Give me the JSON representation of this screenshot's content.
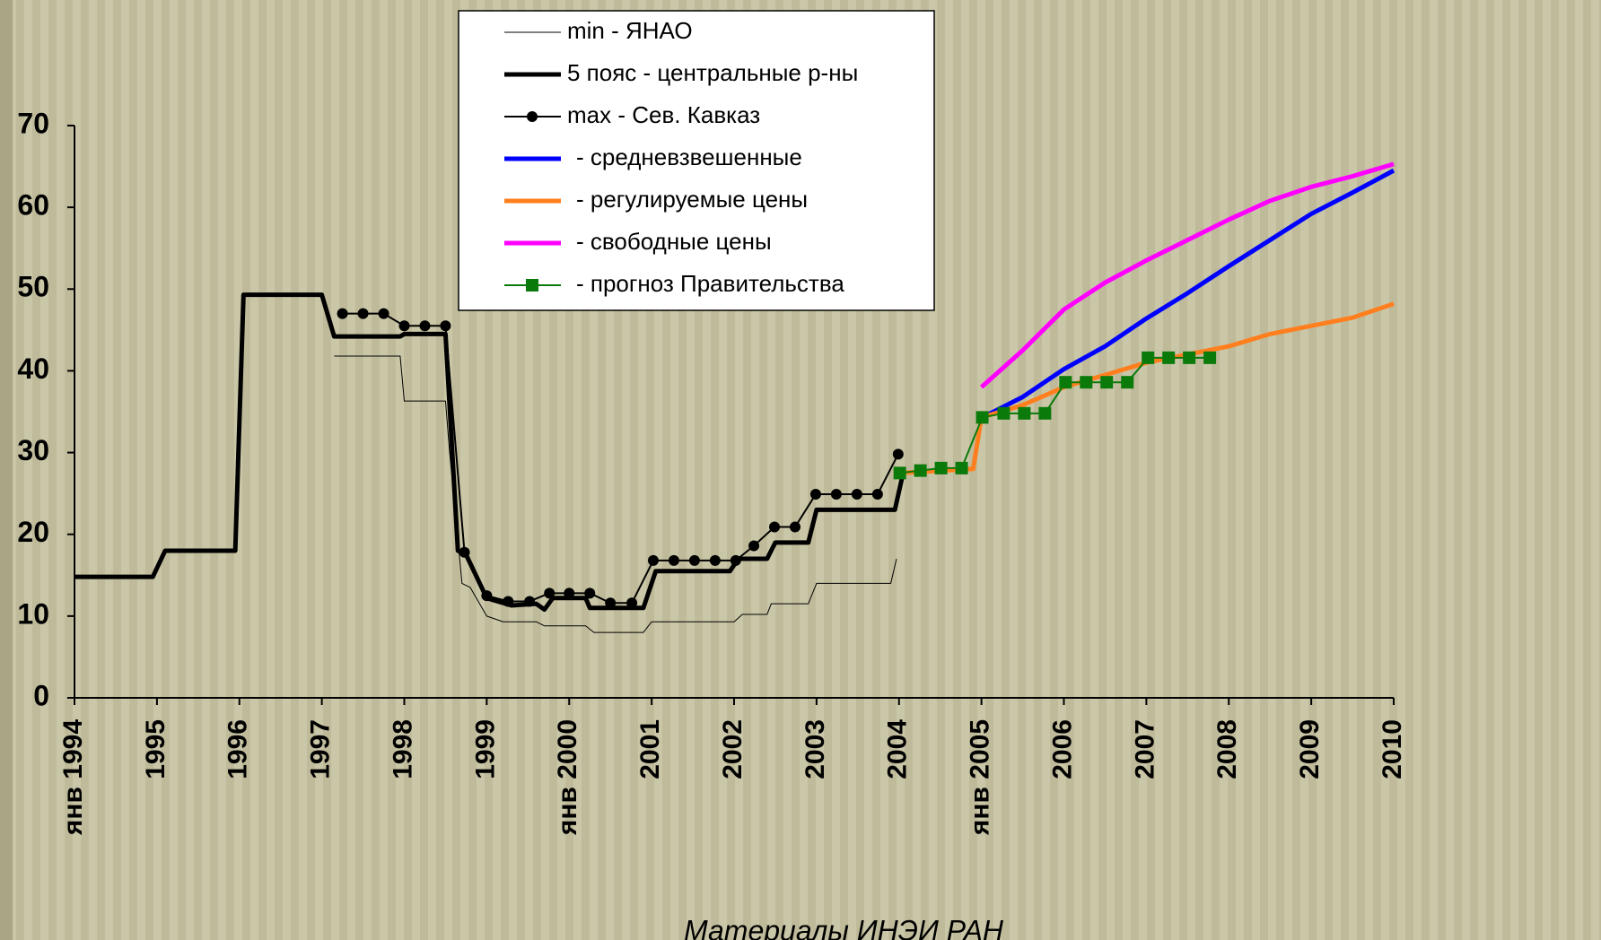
{
  "chart_data": {
    "type": "line",
    "annotation": "Материалы ИНЭИ РАН",
    "xlim": [
      1994,
      2010
    ],
    "ylim": [
      0,
      70
    ],
    "yticks": [
      0,
      10,
      20,
      30,
      40,
      50,
      60,
      70
    ],
    "xticks": [
      {
        "value": 1994,
        "label": "янв 1994"
      },
      1995,
      1996,
      1997,
      1998,
      1999,
      {
        "value": 2000,
        "label": "янв 2000"
      },
      2001,
      2002,
      2003,
      2004,
      {
        "value": 2005,
        "label": "янв 2005"
      },
      2006,
      2007,
      2008,
      2009,
      2010
    ],
    "series": [
      {
        "name": "min - ЯНАО",
        "color": "#000000",
        "width": 1,
        "x": [
          1997.15,
          1997.95,
          1998.0,
          1998.5,
          1998.55,
          1998.7,
          1998.8,
          1999.0,
          1999.2,
          1999.6,
          1999.7,
          2000.2,
          2000.3,
          2000.9,
          2001.0,
          2002.0,
          2002.1,
          2002.4,
          2002.45,
          2002.9,
          2003.0,
          2003.9,
          2003.97
        ],
        "values": [
          41.8,
          41.8,
          36.3,
          36.3,
          30,
          14,
          13.5,
          10,
          9.3,
          9.3,
          8.8,
          8.8,
          8,
          8,
          9.3,
          9.3,
          10.2,
          10.2,
          11.5,
          11.5,
          14,
          14,
          17
        ]
      },
      {
        "name": "5 пояс - центральные р-ны",
        "color": "#000000",
        "width": 5,
        "x": [
          1994.0,
          1994.95,
          1995.1,
          1995.95,
          1996.05,
          1997.0,
          1997.15,
          1997.95,
          1998.0,
          1998.5,
          1998.65,
          1998.75,
          1999.0,
          1999.3,
          1999.6,
          1999.7,
          1999.8,
          2000.2,
          2000.25,
          2000.9,
          2001.05,
          2001.95,
          2002.05,
          2002.4,
          2002.5,
          2002.9,
          2003.0,
          2003.95,
          2004.05
        ],
        "values": [
          14.8,
          14.8,
          18,
          18,
          49.3,
          49.3,
          44.2,
          44.2,
          44.5,
          44.5,
          18,
          17.5,
          12.2,
          11.3,
          11.5,
          10.8,
          12.2,
          12.2,
          11,
          11,
          15.5,
          15.5,
          17,
          17,
          19,
          19,
          23,
          23,
          27.5
        ]
      },
      {
        "name": "max - Сев. Кавказ",
        "color": "#000000",
        "width": 2,
        "marker": "circle",
        "x": [
          1997.25,
          1997.5,
          1997.75,
          1998.0,
          1998.25,
          1998.5,
          1998.73,
          1999.0,
          1999.26,
          1999.52,
          1999.76,
          2000.0,
          2000.25,
          2000.5,
          2000.76,
          2001.02,
          2001.27,
          2001.52,
          2001.77,
          2002.02,
          2002.24,
          2002.49,
          2002.74,
          2002.99,
          2003.24,
          2003.49,
          2003.74,
          2003.99
        ],
        "values": [
          47,
          47,
          47,
          45.5,
          45.5,
          45.5,
          17.8,
          12.5,
          11.8,
          11.8,
          12.8,
          12.8,
          12.8,
          11.6,
          11.6,
          16.8,
          16.8,
          16.8,
          16.8,
          16.8,
          18.6,
          20.9,
          20.9,
          24.9,
          24.9,
          24.9,
          24.9,
          29.8
        ]
      },
      {
        "name": "- средневзвешенные",
        "color": "#0000ff",
        "width": 5,
        "x": [
          2005.05,
          2005.5,
          2006,
          2006.5,
          2007,
          2007.5,
          2008,
          2008.5,
          2009,
          2009.5,
          2010
        ],
        "values": [
          34.5,
          36.8,
          40.2,
          43,
          46.4,
          49.5,
          52.8,
          56,
          59.2,
          61.8,
          64.5
        ]
      },
      {
        "name": "- регулируемые цены",
        "color": "#ff7f1e",
        "width": 5,
        "x": [
          2004.0,
          2004.9,
          2005.0,
          2005.5,
          2006,
          2006.5,
          2007,
          2007.5,
          2008,
          2008.5,
          2009,
          2009.5,
          2010
        ],
        "values": [
          27.5,
          28,
          34.3,
          35.8,
          38,
          39.5,
          41,
          42,
          43,
          44.5,
          45.5,
          46.5,
          48.2
        ]
      },
      {
        "name": "- свободные цены",
        "color": "#ff00ff",
        "width": 5,
        "x": [
          2005.0,
          2005.5,
          2006,
          2006.5,
          2007,
          2007.5,
          2008,
          2008.5,
          2009,
          2009.5,
          2010
        ],
        "values": [
          38,
          42.5,
          47.5,
          50.8,
          53.5,
          56,
          58.5,
          60.8,
          62.5,
          63.8,
          65.3
        ]
      },
      {
        "name": "- прогноз Правительства",
        "color": "#0a7a0a",
        "width": 2,
        "marker": "square",
        "x": [
          2004.01,
          2004.26,
          2004.51,
          2004.76,
          2005.01,
          2005.27,
          2005.52,
          2005.77,
          2006.02,
          2006.27,
          2006.52,
          2006.77,
          2007.02,
          2007.27,
          2007.52,
          2007.77
        ],
        "values": [
          27.5,
          27.8,
          28.1,
          28.1,
          34.3,
          34.8,
          34.8,
          34.8,
          38.6,
          38.6,
          38.6,
          38.6,
          41.6,
          41.6,
          41.6,
          41.6
        ]
      }
    ]
  }
}
